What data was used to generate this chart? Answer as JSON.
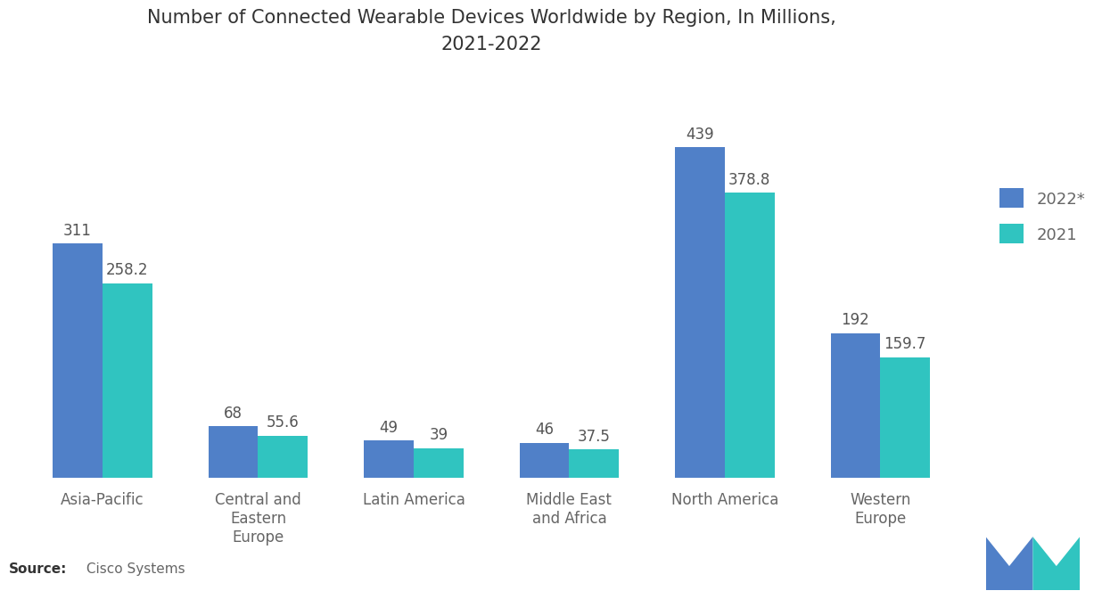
{
  "title": "Number of Connected Wearable Devices Worldwide by Region, In Millions,\n2021-2022",
  "categories": [
    "Asia-Pacific",
    "Central and\nEastern\nEurope",
    "Latin America",
    "Middle East\nand Africa",
    "North America",
    "Western\nEurope"
  ],
  "values_2022": [
    311,
    68,
    49,
    46,
    439,
    192
  ],
  "values_2021": [
    258.2,
    55.6,
    39,
    37.5,
    378.8,
    159.7
  ],
  "labels_2022": [
    "311",
    "68",
    "49",
    "46",
    "439",
    "192"
  ],
  "labels_2021": [
    "258.2",
    "55.6",
    "39",
    "37.5",
    "378.8",
    "159.7"
  ],
  "color_2022": "#5080C8",
  "color_2021": "#30C4C0",
  "legend_2022": "2022*",
  "legend_2021": "2021",
  "source_bold": "Source:",
  "source_normal": " Cisco Systems",
  "background_color": "#FFFFFF",
  "bar_width": 0.32,
  "ylim": [
    0,
    520
  ],
  "title_fontsize": 15,
  "label_fontsize": 12,
  "tick_fontsize": 12,
  "legend_fontsize": 13,
  "logo_color_left": "#5080C8",
  "logo_color_right": "#30C4C0"
}
